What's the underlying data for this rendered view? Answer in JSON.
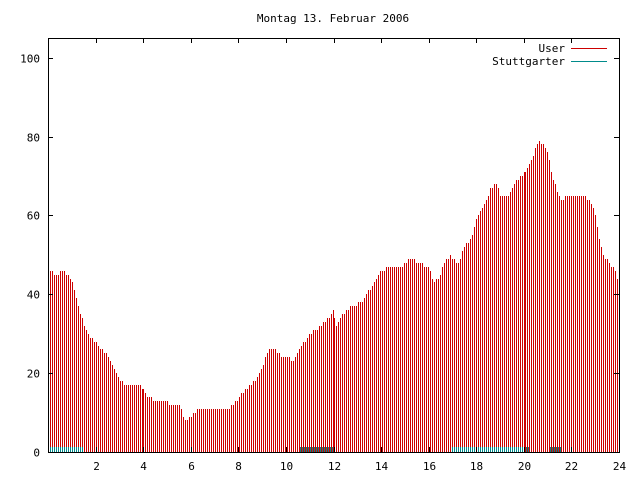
{
  "chart_data": {
    "type": "bar",
    "title": "Montag 13. Februar 2006",
    "xlim": [
      0,
      24
    ],
    "ylim": [
      0,
      105
    ],
    "xticks": [
      2,
      4,
      6,
      8,
      10,
      12,
      14,
      16,
      18,
      20,
      22,
      24
    ],
    "yticks": [
      0,
      20,
      40,
      60,
      80,
      100
    ],
    "legend_position": "top-right",
    "colors": {
      "User": "#cc0000",
      "Stuttgarter": "#008b8b"
    },
    "series": [
      {
        "name": "User",
        "control_points": [
          [
            0.0,
            47
          ],
          [
            0.3,
            45
          ],
          [
            0.6,
            46
          ],
          [
            0.8,
            45
          ],
          [
            1.0,
            43
          ],
          [
            1.2,
            38
          ],
          [
            1.4,
            34
          ],
          [
            1.6,
            31
          ],
          [
            1.8,
            29
          ],
          [
            2.0,
            28
          ],
          [
            2.2,
            26
          ],
          [
            2.4,
            25
          ],
          [
            2.6,
            23
          ],
          [
            2.8,
            20
          ],
          [
            3.0,
            18
          ],
          [
            3.2,
            17
          ],
          [
            3.8,
            17
          ],
          [
            4.0,
            16
          ],
          [
            4.2,
            14
          ],
          [
            4.6,
            13
          ],
          [
            5.0,
            13
          ],
          [
            5.2,
            12
          ],
          [
            5.5,
            12
          ],
          [
            5.6,
            11
          ],
          [
            5.7,
            9
          ],
          [
            5.8,
            8
          ],
          [
            6.0,
            9
          ],
          [
            6.3,
            11
          ],
          [
            6.6,
            11
          ],
          [
            7.0,
            11
          ],
          [
            7.5,
            11
          ],
          [
            7.8,
            12
          ],
          [
            8.0,
            14
          ],
          [
            8.5,
            17
          ],
          [
            8.8,
            19
          ],
          [
            9.0,
            22
          ],
          [
            9.3,
            26
          ],
          [
            9.5,
            26
          ],
          [
            9.8,
            24
          ],
          [
            10.0,
            24
          ],
          [
            10.3,
            23
          ],
          [
            10.6,
            27
          ],
          [
            11.0,
            30
          ],
          [
            11.4,
            32
          ],
          [
            11.8,
            34
          ],
          [
            12.0,
            36
          ],
          [
            12.1,
            32
          ],
          [
            12.4,
            35
          ],
          [
            12.8,
            37
          ],
          [
            13.2,
            38
          ],
          [
            13.6,
            42
          ],
          [
            14.0,
            46
          ],
          [
            14.4,
            47
          ],
          [
            14.8,
            47
          ],
          [
            15.2,
            49
          ],
          [
            15.6,
            48
          ],
          [
            16.0,
            47
          ],
          [
            16.2,
            43
          ],
          [
            16.4,
            44
          ],
          [
            16.6,
            48
          ],
          [
            16.9,
            50
          ],
          [
            17.2,
            48
          ],
          [
            17.5,
            52
          ],
          [
            17.8,
            55
          ],
          [
            18.0,
            59
          ],
          [
            18.3,
            63
          ],
          [
            18.6,
            67
          ],
          [
            18.8,
            68
          ],
          [
            19.0,
            65
          ],
          [
            19.3,
            65
          ],
          [
            19.6,
            68
          ],
          [
            19.8,
            70
          ],
          [
            20.1,
            71
          ],
          [
            20.4,
            75
          ],
          [
            20.6,
            79
          ],
          [
            20.8,
            78
          ],
          [
            21.0,
            76
          ],
          [
            21.2,
            70
          ],
          [
            21.4,
            66
          ],
          [
            21.6,
            64
          ],
          [
            21.8,
            65
          ],
          [
            22.2,
            65
          ],
          [
            22.5,
            65
          ],
          [
            22.8,
            64
          ],
          [
            23.0,
            60
          ],
          [
            23.2,
            53
          ],
          [
            23.4,
            49
          ],
          [
            23.6,
            48
          ],
          [
            23.8,
            46
          ],
          [
            24.0,
            43
          ]
        ]
      },
      {
        "name": "Stuttgarter",
        "segments": [
          {
            "x_start": 0.0,
            "x_end": 1.5,
            "value": 1
          },
          {
            "x_start": 10.6,
            "x_end": 12.0,
            "value": 1
          },
          {
            "x_start": 17.0,
            "x_end": 20.2,
            "value": 1
          },
          {
            "x_start": 21.1,
            "x_end": 21.6,
            "value": 1
          }
        ]
      }
    ]
  }
}
